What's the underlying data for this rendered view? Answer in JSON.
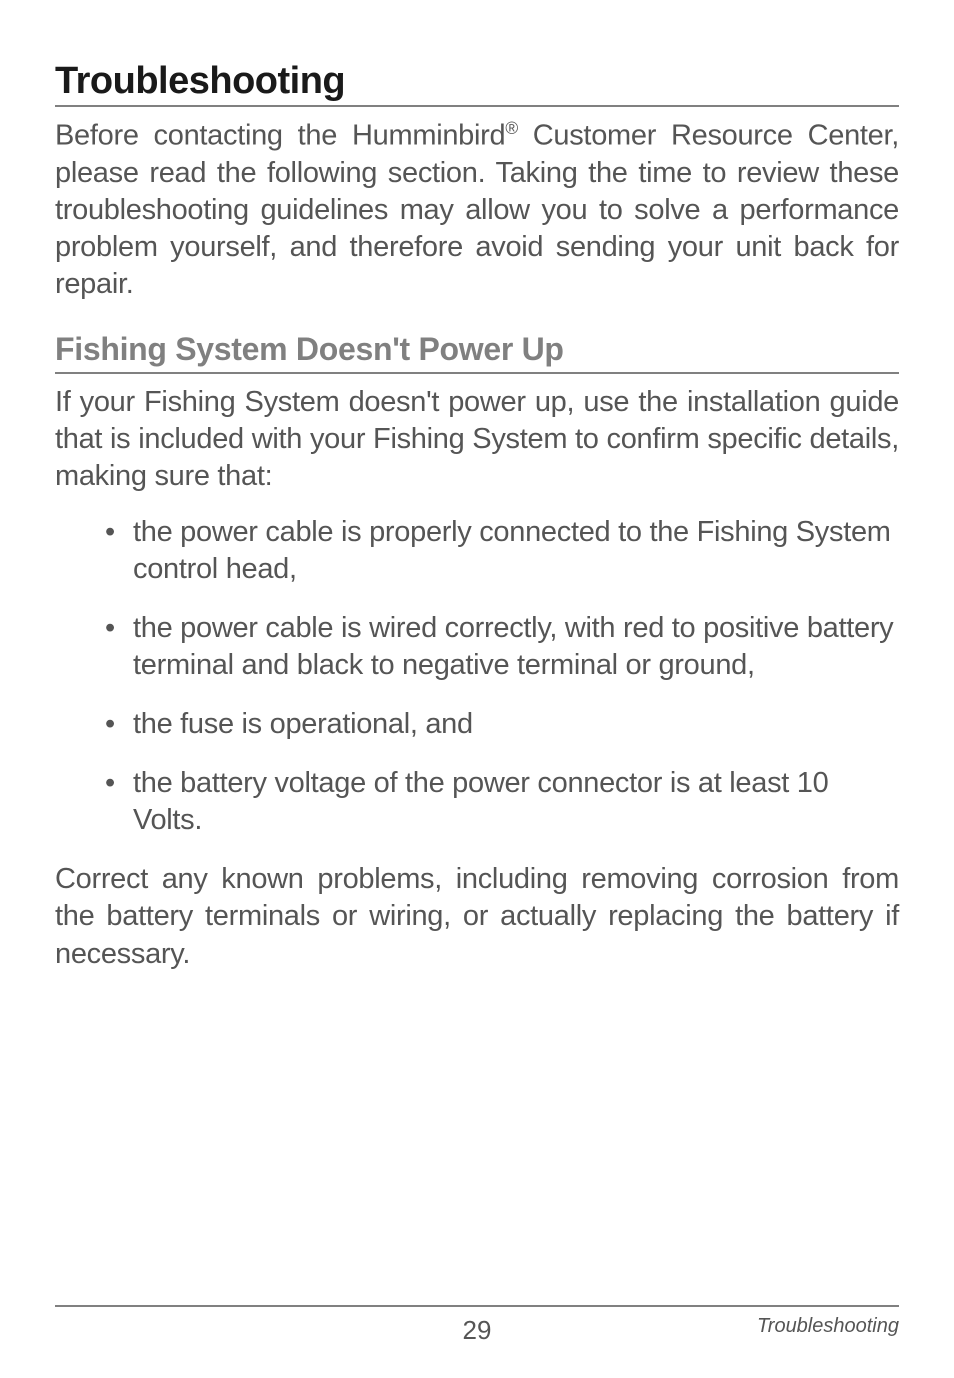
{
  "page": {
    "heading_main": "Troubleshooting",
    "intro_para_html": "Before contacting the Humminbird<span class=\"reg-mark\">®</span> Customer Resource Center, please read the following section. Taking the time to review these troubleshooting guidelines may allow you to solve a performance problem yourself, and therefore avoid sending your unit back for repair.",
    "heading_sub": "Fishing System Doesn't Power Up",
    "body_para": "If your Fishing System doesn't power up, use the installation guide that is included with your Fishing System to confirm specific details, making sure that:",
    "bullets": [
      "the power cable is properly connected to the Fishing System control head,",
      "the power cable is wired correctly, with red to positive battery terminal and black to negative terminal or ground,",
      "the fuse is operational, and",
      "the battery voltage of the power connector is at least 10 Volts."
    ],
    "closing_para": "Correct any known problems, including removing corrosion from the battery terminals or wiring, or actually replacing the battery if necessary.",
    "footer": {
      "page_number": "29",
      "section_label": "Troubleshooting"
    }
  },
  "styles": {
    "background_color": "#ffffff",
    "heading_main_color": "#1a1a1a",
    "heading_main_fontsize": 38,
    "heading_sub_color": "#808080",
    "heading_sub_fontsize": 32,
    "body_text_color": "#555555",
    "body_fontsize": 29,
    "divider_color": "#808080",
    "footer_fontsize_page": 26,
    "footer_fontsize_section": 20
  }
}
